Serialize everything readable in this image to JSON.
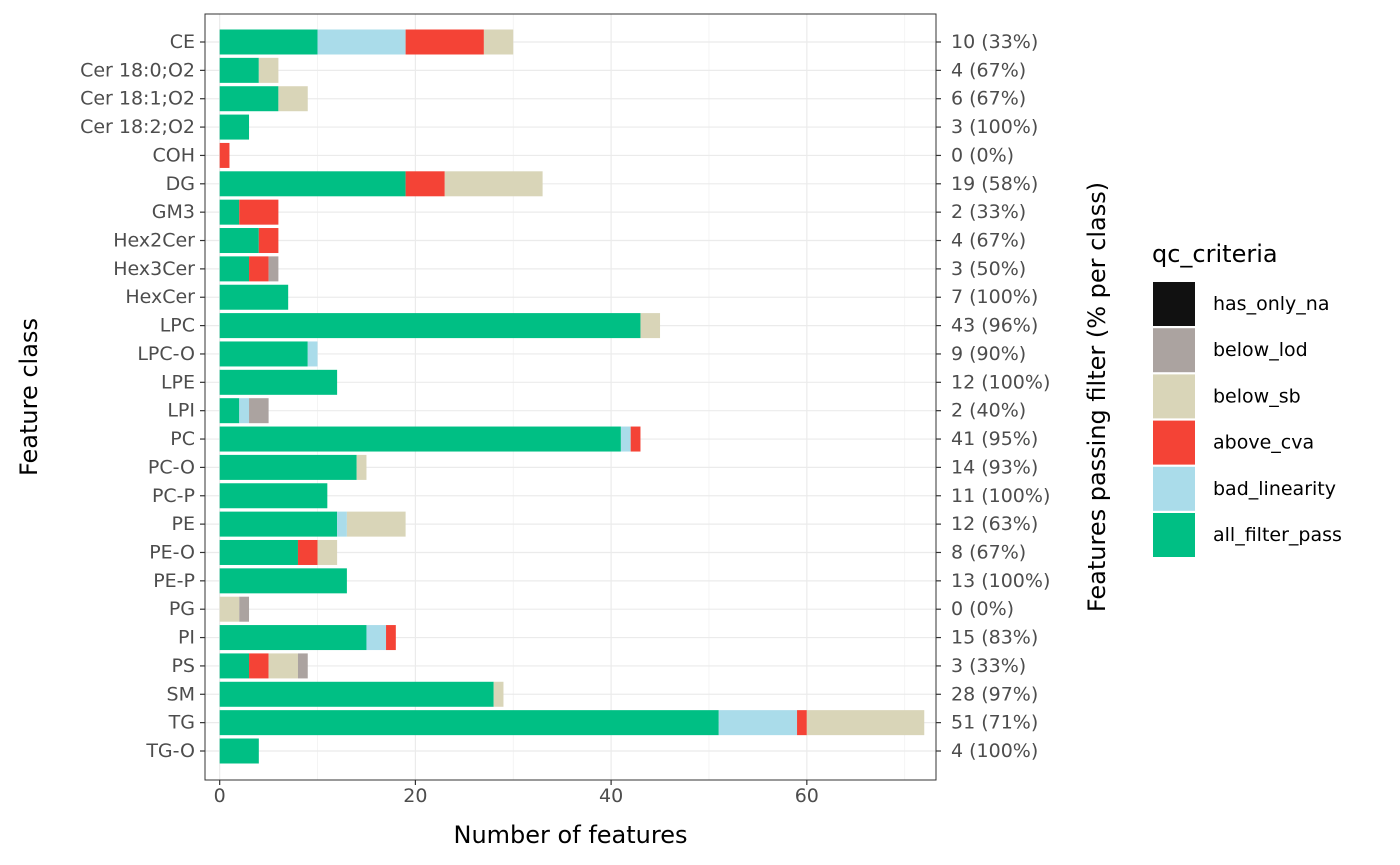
{
  "chart_data": {
    "type": "bar",
    "orientation": "horizontal",
    "stacked": true,
    "xlabel": "Number of features",
    "ylabel": "Feature class",
    "y2label": "Features passing filter (% per class)",
    "xlim": [
      -1.5,
      73.2
    ],
    "xticks": [
      0,
      20,
      40,
      60
    ],
    "grid": true,
    "legend_position": "right",
    "legend": {
      "title": "qc_criteria",
      "entries": [
        {
          "key": "has_only_na",
          "label": "has_only_na",
          "color": "#111111"
        },
        {
          "key": "below_lod",
          "label": "below_lod",
          "color": "#aba3a0"
        },
        {
          "key": "below_sb",
          "label": "below_sb",
          "color": "#d9d5b8"
        },
        {
          "key": "above_cva",
          "label": "above_cva",
          "color": "#f44336"
        },
        {
          "key": "bad_linearity",
          "label": "bad_linearity",
          "color": "#aadcea"
        },
        {
          "key": "all_filter_pass",
          "label": "all_filter_pass",
          "color": "#00bf84"
        }
      ]
    },
    "stack_order": [
      "all_filter_pass",
      "bad_linearity",
      "above_cva",
      "below_sb",
      "below_lod",
      "has_only_na"
    ],
    "categories": [
      "CE",
      "Cer 18:0;O2",
      "Cer 18:1;O2",
      "Cer 18:2;O2",
      "COH",
      "DG",
      "GM3",
      "Hex2Cer",
      "Hex3Cer",
      "HexCer",
      "LPC",
      "LPC-O",
      "LPE",
      "LPI",
      "PC",
      "PC-O",
      "PC-P",
      "PE",
      "PE-O",
      "PE-P",
      "PG",
      "PI",
      "PS",
      "SM",
      "TG",
      "TG-O"
    ],
    "series": [
      {
        "name": "all_filter_pass",
        "values": [
          10,
          4,
          6,
          3,
          0,
          19,
          2,
          4,
          3,
          7,
          43,
          9,
          12,
          2,
          41,
          14,
          11,
          12,
          8,
          13,
          0,
          15,
          3,
          28,
          51,
          4
        ]
      },
      {
        "name": "bad_linearity",
        "values": [
          9,
          0,
          0,
          0,
          0,
          0,
          0,
          0,
          0,
          0,
          0,
          1,
          0,
          1,
          1,
          0,
          0,
          1,
          0,
          0,
          0,
          2,
          0,
          0,
          8,
          0
        ]
      },
      {
        "name": "above_cva",
        "values": [
          8,
          0,
          0,
          0,
          1,
          4,
          4,
          2,
          2,
          0,
          0,
          0,
          0,
          0,
          1,
          0,
          0,
          0,
          2,
          0,
          0,
          1,
          2,
          0,
          1,
          0
        ]
      },
      {
        "name": "below_sb",
        "values": [
          3,
          2,
          3,
          0,
          0,
          10,
          0,
          0,
          0,
          0,
          2,
          0,
          0,
          0,
          0,
          1,
          0,
          6,
          2,
          0,
          2,
          0,
          3,
          1,
          12,
          0
        ]
      },
      {
        "name": "below_lod",
        "values": [
          0,
          0,
          0,
          0,
          0,
          0,
          0,
          0,
          1,
          0,
          0,
          0,
          0,
          2,
          0,
          0,
          0,
          0,
          0,
          0,
          1,
          0,
          1,
          0,
          0,
          0
        ]
      },
      {
        "name": "has_only_na",
        "values": [
          0,
          0,
          0,
          0,
          0,
          0,
          0,
          0,
          0,
          0,
          0,
          0,
          0,
          0,
          0,
          0,
          0,
          0,
          0,
          0,
          0,
          0,
          0,
          0,
          0,
          0
        ]
      }
    ],
    "pass_labels": [
      "10 (33%)",
      "4 (67%)",
      "6 (67%)",
      "3 (100%)",
      "0 (0%)",
      "19 (58%)",
      "2 (33%)",
      "4 (67%)",
      "3 (50%)",
      "7 (100%)",
      "43 (96%)",
      "9 (90%)",
      "12 (100%)",
      "2 (40%)",
      "41 (95%)",
      "14 (93%)",
      "11 (100%)",
      "12 (63%)",
      "8 (67%)",
      "13 (100%)",
      "0 (0%)",
      "15 (83%)",
      "3 (33%)",
      "28 (97%)",
      "51 (71%)",
      "4 (100%)"
    ]
  }
}
